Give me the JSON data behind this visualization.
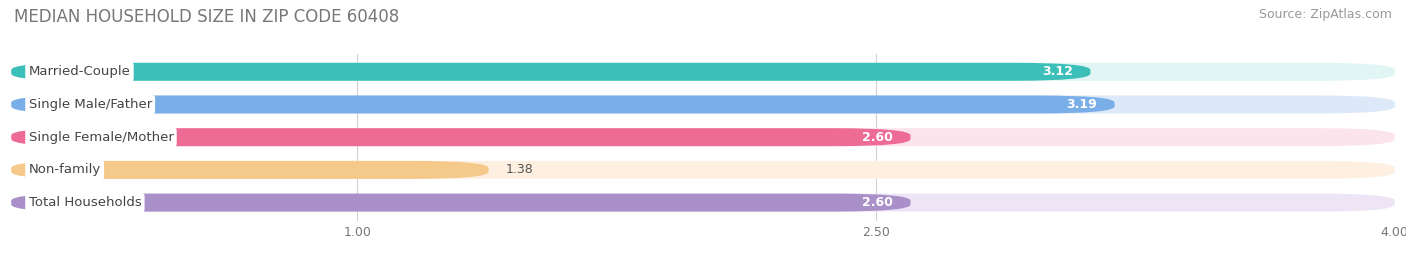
{
  "title": "MEDIAN HOUSEHOLD SIZE IN ZIP CODE 60408",
  "source": "Source: ZipAtlas.com",
  "categories": [
    "Married-Couple",
    "Single Male/Father",
    "Single Female/Mother",
    "Non-family",
    "Total Households"
  ],
  "values": [
    3.12,
    3.19,
    2.6,
    1.38,
    2.6
  ],
  "bar_colors": [
    "#3BBFB8",
    "#7aaee8",
    "#EE6B96",
    "#F5C98A",
    "#A990C8"
  ],
  "bar_bg_colors": [
    "#e0f5f4",
    "#dde8f8",
    "#fce4ec",
    "#fdf0e0",
    "#ede5f5"
  ],
  "xlim": [
    0,
    4.0
  ],
  "xticks": [
    1.0,
    2.5,
    4.0
  ],
  "title_fontsize": 12,
  "source_fontsize": 9,
  "label_fontsize": 9.5,
  "value_fontsize": 9,
  "background_color": "#ffffff",
  "value_inside_threshold": 2.5,
  "value_colors_inside": "#ffffff",
  "value_colors_outside": "#555555"
}
